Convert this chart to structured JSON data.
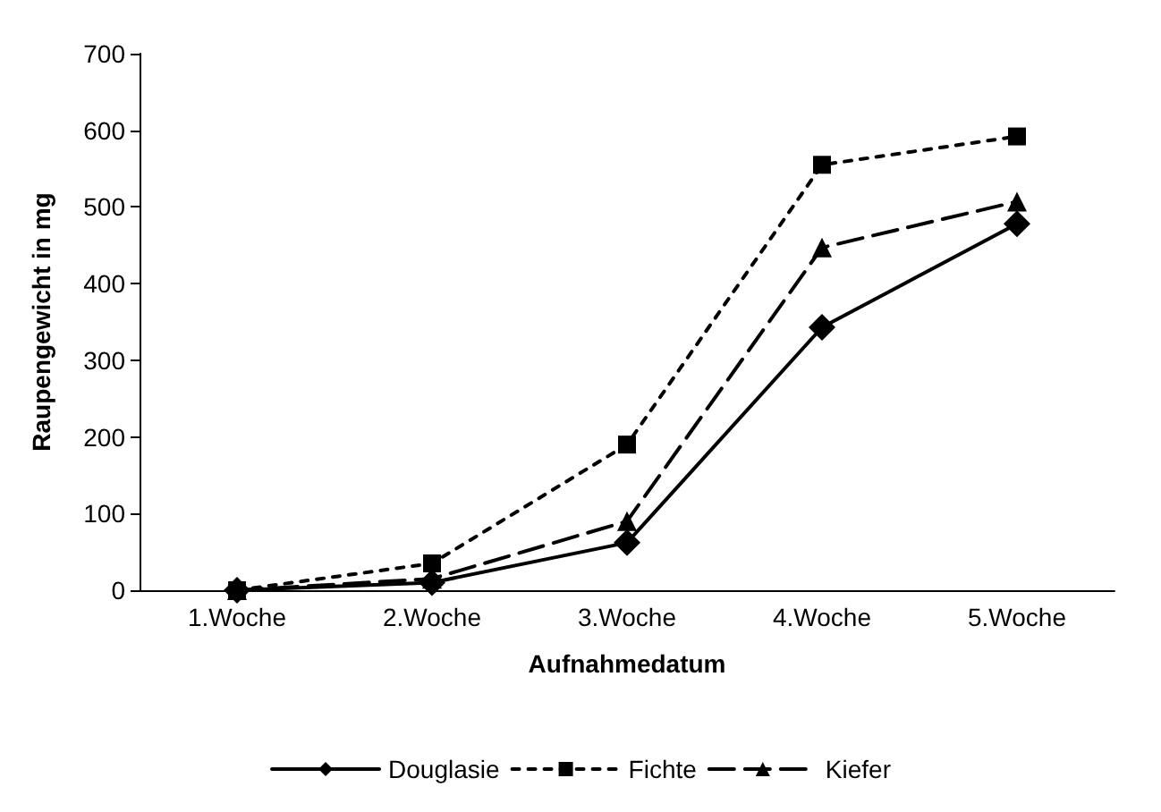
{
  "chart_data": {
    "type": "line",
    "xlabel": "Aufnahmedatum",
    "ylabel": "Raupengewicht in mg",
    "categories": [
      "1.Woche",
      "2.Woche",
      "3.Woche",
      "4.Woche",
      "5.Woche"
    ],
    "series": [
      {
        "name": "Douglasie",
        "color": "#000000",
        "values": [
          0,
          10,
          62,
          343,
          478
        ],
        "marker": "diamond",
        "line_style": "solid"
      },
      {
        "name": "Fichte",
        "color": "#000000",
        "values": [
          0,
          35,
          190,
          555,
          592
        ],
        "marker": "square",
        "line_style": "dotted"
      },
      {
        "name": "Kiefer",
        "color": "#000000",
        "values": [
          0,
          15,
          90,
          447,
          507
        ],
        "marker": "triangle",
        "line_style": "dashed"
      }
    ],
    "ylim": [
      0,
      700
    ],
    "yticks": [
      0,
      100,
      200,
      300,
      400,
      500,
      600,
      700
    ],
    "grid": false,
    "legend": "bottom"
  }
}
